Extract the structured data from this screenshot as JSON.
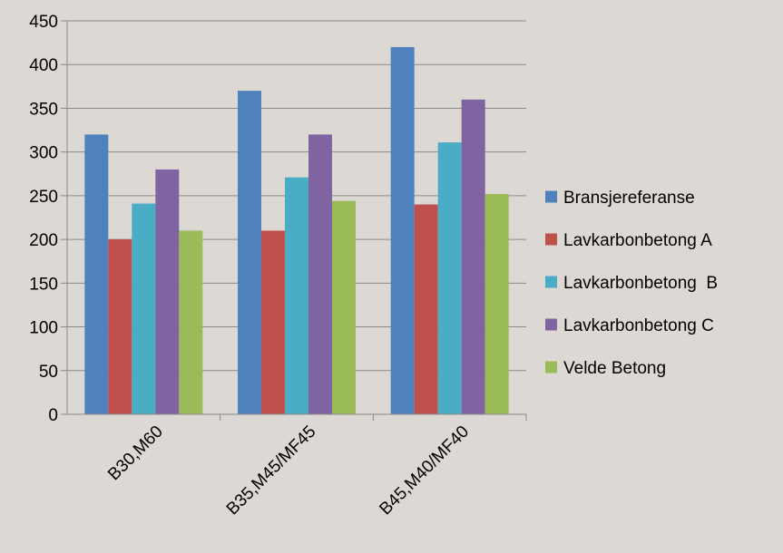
{
  "colors": {
    "background": "#dcd8d3",
    "gridline": "#8a8a8a",
    "axis": "#8a8a8a"
  },
  "chart_data": {
    "type": "bar",
    "title": "",
    "xlabel": "",
    "ylabel": "",
    "categories": [
      "B30,M60",
      "B35,M45/MF45",
      "B45,M40/MF40"
    ],
    "ylim": [
      0,
      450
    ],
    "ytick_step": 50,
    "grid": true,
    "legend_position": "right",
    "series": [
      {
        "name": "Bransjereferanse",
        "color": "#4f81bd",
        "values": [
          320,
          370,
          420
        ]
      },
      {
        "name": "Lavkarbonbetong A",
        "color": "#c0504d",
        "values": [
          200,
          210,
          240
        ]
      },
      {
        "name": "Lavkarbonbetong  B",
        "color": "#4bacc6",
        "values": [
          241,
          271,
          311
        ]
      },
      {
        "name": "Lavkarbonbetong C",
        "color": "#8064a2",
        "values": [
          280,
          320,
          360
        ]
      },
      {
        "name": "Velde Betong",
        "color": "#9bbb59",
        "values": [
          210,
          244,
          252
        ]
      }
    ]
  }
}
